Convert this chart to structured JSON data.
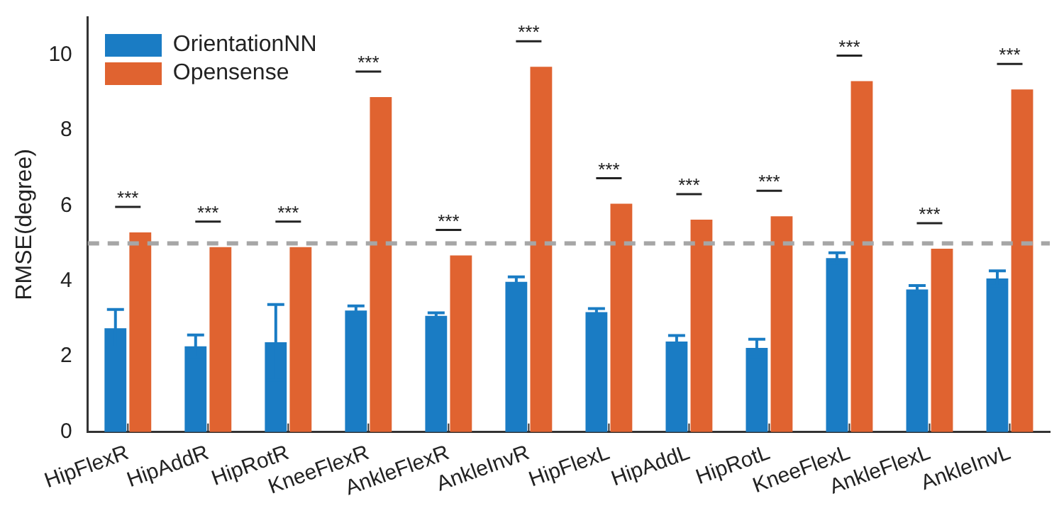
{
  "chart_data": {
    "type": "bar",
    "ylabel": "RMSE(degree)",
    "categories": [
      "HipFlexR",
      "HipAddR",
      "HipRotR",
      "KneeFlexR",
      "AnkleFlexR",
      "AnkleInvR",
      "HipFlexL",
      "HipAddL",
      "HipRotL",
      "KneeFlexL",
      "AnkleFlexL",
      "AnkleInvL"
    ],
    "series": [
      {
        "name": "OrientationNN",
        "color": "#1a7cc4",
        "values": [
          2.75,
          2.27,
          2.38,
          3.22,
          3.08,
          3.98,
          3.18,
          2.4,
          2.23,
          4.61,
          3.78,
          4.07
        ],
        "errors": [
          0.5,
          0.3,
          1.0,
          0.12,
          0.08,
          0.13,
          0.09,
          0.16,
          0.23,
          0.14,
          0.1,
          0.2
        ]
      },
      {
        "name": "Opensense",
        "color": "#e06330",
        "values": [
          5.29,
          4.9,
          4.9,
          8.88,
          4.68,
          9.68,
          6.05,
          5.63,
          5.72,
          9.3,
          4.86,
          9.08
        ]
      }
    ],
    "ylim": [
      0,
      11
    ],
    "yticks": [
      0,
      2,
      4,
      6,
      8,
      10
    ],
    "grid": false,
    "legend": "top left",
    "ref_lines": [
      {
        "axis": "y",
        "value": 5,
        "color": "#a6a6a6",
        "line_style": "dashed"
      }
    ],
    "annotations": [
      "***",
      "***",
      "***",
      "***",
      "***",
      "***",
      "***",
      "***",
      "***",
      "***",
      "***",
      "***"
    ]
  }
}
